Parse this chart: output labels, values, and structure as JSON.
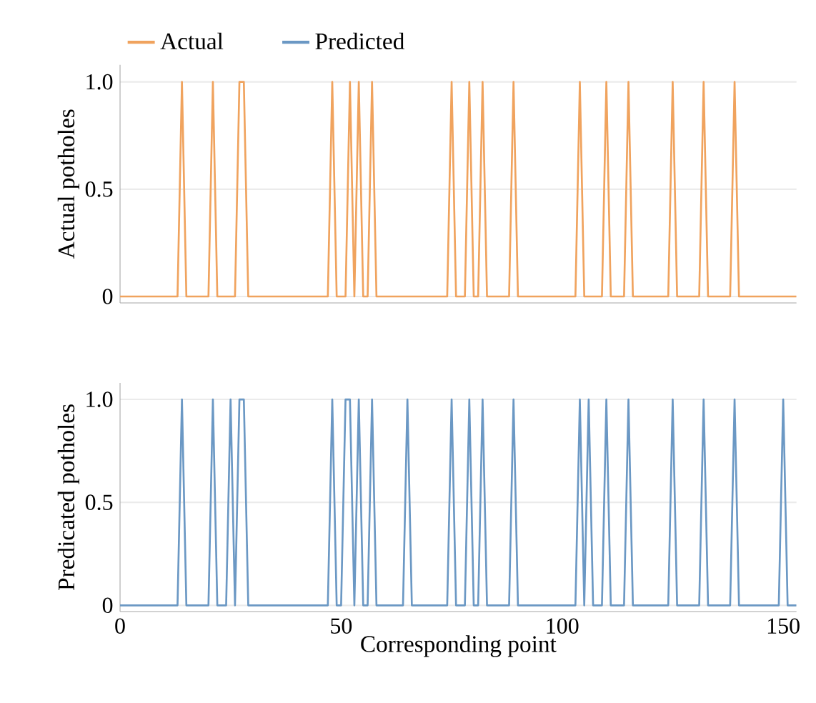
{
  "chart_data": [
    {
      "type": "line",
      "ylabel": "Actual potholes",
      "legend": "top left",
      "grid": "y",
      "tick_labels": "y",
      "marker": "none",
      "xlim": [
        0,
        153
      ],
      "ylim": [
        -0.03,
        1.08
      ],
      "yticks": [
        0,
        0.5,
        {
          "value": 1,
          "label": "1.0"
        }
      ],
      "x": [
        0,
        1,
        2,
        3,
        4,
        5,
        6,
        7,
        8,
        9,
        10,
        11,
        12,
        13,
        14,
        15,
        16,
        17,
        18,
        19,
        20,
        21,
        22,
        23,
        24,
        25,
        26,
        27,
        28,
        29,
        30,
        31,
        32,
        33,
        34,
        35,
        36,
        37,
        38,
        39,
        40,
        41,
        42,
        43,
        44,
        45,
        46,
        47,
        48,
        49,
        50,
        51,
        52,
        53,
        54,
        55,
        56,
        57,
        58,
        59,
        60,
        61,
        62,
        63,
        64,
        65,
        66,
        67,
        68,
        69,
        70,
        71,
        72,
        73,
        74,
        75,
        76,
        77,
        78,
        79,
        80,
        81,
        82,
        83,
        84,
        85,
        86,
        87,
        88,
        89,
        90,
        91,
        92,
        93,
        94,
        95,
        96,
        97,
        98,
        99,
        100,
        101,
        102,
        103,
        104,
        105,
        106,
        107,
        108,
        109,
        110,
        111,
        112,
        113,
        114,
        115,
        116,
        117,
        118,
        119,
        120,
        121,
        122,
        123,
        124,
        125,
        126,
        127,
        128,
        129,
        130,
        131,
        132,
        133,
        134,
        135,
        136,
        137,
        138,
        139,
        140,
        141,
        142,
        143,
        144,
        145,
        146,
        147,
        148,
        149,
        150,
        151,
        152,
        153
      ],
      "series": [
        {
          "name": "Actual",
          "color": "#f0a35e",
          "values": [
            0,
            0,
            0,
            0,
            0,
            0,
            0,
            0,
            0,
            0,
            0,
            0,
            0,
            0,
            1,
            0,
            0,
            0,
            0,
            0,
            0,
            1,
            0,
            0,
            0,
            0,
            0,
            1,
            1,
            0,
            0,
            0,
            0,
            0,
            0,
            0,
            0,
            0,
            0,
            0,
            0,
            0,
            0,
            0,
            0,
            0,
            0,
            0,
            1,
            0,
            0,
            0,
            1,
            0,
            1,
            0,
            0,
            1,
            0,
            0,
            0,
            0,
            0,
            0,
            0,
            0,
            0,
            0,
            0,
            0,
            0,
            0,
            0,
            0,
            0,
            1,
            0,
            0,
            0,
            1,
            0,
            0,
            1,
            0,
            0,
            0,
            0,
            0,
            0,
            1,
            0,
            0,
            0,
            0,
            0,
            0,
            0,
            0,
            0,
            0,
            0,
            0,
            0,
            0,
            1,
            0,
            0,
            0,
            0,
            0,
            1,
            0,
            0,
            0,
            0,
            1,
            0,
            0,
            0,
            0,
            0,
            0,
            0,
            0,
            0,
            1,
            0,
            0,
            0,
            0,
            0,
            0,
            1,
            0,
            0,
            0,
            0,
            0,
            0,
            1,
            0,
            0,
            0,
            0,
            0,
            0,
            0,
            0,
            0,
            0,
            0,
            0,
            0,
            0
          ]
        }
      ]
    },
    {
      "type": "line",
      "ylabel": "Predicated potholes",
      "xlabel": "Corresponding point",
      "grid": "y",
      "marker": "none",
      "xlim": [
        0,
        153
      ],
      "ylim": [
        -0.03,
        1.08
      ],
      "xticks": [
        0,
        50,
        100,
        150
      ],
      "yticks": [
        0,
        0.5,
        {
          "value": 1,
          "label": "1.0"
        }
      ],
      "x": [
        0,
        1,
        2,
        3,
        4,
        5,
        6,
        7,
        8,
        9,
        10,
        11,
        12,
        13,
        14,
        15,
        16,
        17,
        18,
        19,
        20,
        21,
        22,
        23,
        24,
        25,
        26,
        27,
        28,
        29,
        30,
        31,
        32,
        33,
        34,
        35,
        36,
        37,
        38,
        39,
        40,
        41,
        42,
        43,
        44,
        45,
        46,
        47,
        48,
        49,
        50,
        51,
        52,
        53,
        54,
        55,
        56,
        57,
        58,
        59,
        60,
        61,
        62,
        63,
        64,
        65,
        66,
        67,
        68,
        69,
        70,
        71,
        72,
        73,
        74,
        75,
        76,
        77,
        78,
        79,
        80,
        81,
        82,
        83,
        84,
        85,
        86,
        87,
        88,
        89,
        90,
        91,
        92,
        93,
        94,
        95,
        96,
        97,
        98,
        99,
        100,
        101,
        102,
        103,
        104,
        105,
        106,
        107,
        108,
        109,
        110,
        111,
        112,
        113,
        114,
        115,
        116,
        117,
        118,
        119,
        120,
        121,
        122,
        123,
        124,
        125,
        126,
        127,
        128,
        129,
        130,
        131,
        132,
        133,
        134,
        135,
        136,
        137,
        138,
        139,
        140,
        141,
        142,
        143,
        144,
        145,
        146,
        147,
        148,
        149,
        150,
        151,
        152,
        153
      ],
      "series": [
        {
          "name": "Predicted",
          "color": "#6b98c4",
          "values": [
            0,
            0,
            0,
            0,
            0,
            0,
            0,
            0,
            0,
            0,
            0,
            0,
            0,
            0,
            1,
            0,
            0,
            0,
            0,
            0,
            0,
            1,
            0,
            0,
            0,
            1,
            0,
            1,
            1,
            0,
            0,
            0,
            0,
            0,
            0,
            0,
            0,
            0,
            0,
            0,
            0,
            0,
            0,
            0,
            0,
            0,
            0,
            0,
            1,
            0,
            0,
            1,
            1,
            0,
            1,
            0,
            0,
            1,
            0,
            0,
            0,
            0,
            0,
            0,
            0,
            1,
            0,
            0,
            0,
            0,
            0,
            0,
            0,
            0,
            0,
            1,
            0,
            0,
            0,
            1,
            0,
            0,
            1,
            0,
            0,
            0,
            0,
            0,
            0,
            1,
            0,
            0,
            0,
            0,
            0,
            0,
            0,
            0,
            0,
            0,
            0,
            0,
            0,
            0,
            1,
            0,
            1,
            0,
            0,
            0,
            1,
            0,
            0,
            0,
            0,
            1,
            0,
            0,
            0,
            0,
            0,
            0,
            0,
            0,
            0,
            1,
            0,
            0,
            0,
            0,
            0,
            0,
            1,
            0,
            0,
            0,
            0,
            0,
            0,
            1,
            0,
            0,
            0,
            0,
            0,
            0,
            0,
            0,
            0,
            0,
            1,
            0,
            0,
            0
          ]
        }
      ]
    }
  ]
}
